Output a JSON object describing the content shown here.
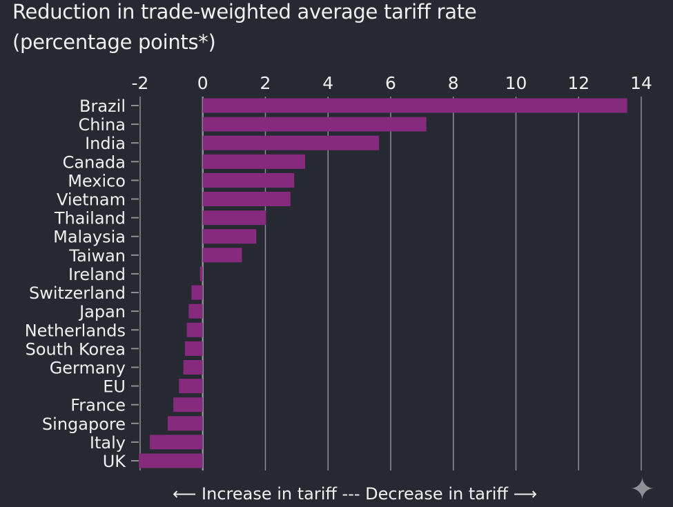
{
  "chart_data": {
    "type": "bar",
    "orientation": "horizontal",
    "title": "Reduction in trade-weighted average tariff rate",
    "subtitle": "(percentage points*)",
    "categories": [
      "Brazil",
      "China",
      "India",
      "Canada",
      "Mexico",
      "Vietnam",
      "Thailand",
      "Malaysia",
      "Taiwan",
      "Ireland",
      "Switzerland",
      "Japan",
      "Netherlands",
      "South Korea",
      "Germany",
      "EU",
      "France",
      "Singapore",
      "Italy",
      "UK"
    ],
    "values": [
      13.55,
      7.14,
      5.63,
      3.27,
      2.92,
      2.8,
      2.02,
      1.71,
      1.25,
      -0.09,
      -0.36,
      -0.45,
      -0.51,
      -0.57,
      -0.62,
      -0.76,
      -0.94,
      -1.12,
      -1.69,
      -2.04
    ],
    "xlim": [
      -2,
      14
    ],
    "xticks": [
      "-2",
      "0",
      "2",
      "4",
      "6",
      "8",
      "10",
      "12",
      "14"
    ],
    "xtick_values": [
      -2,
      0,
      2,
      4,
      6,
      8,
      10,
      12,
      14
    ],
    "xaxis_position": "top",
    "grid": true,
    "footer": "⟵ Increase in tariff --- Decrease in tariff ⟶",
    "colors": {
      "bar": "#862a7e",
      "background": "#262931",
      "grid": "#8e9097"
    }
  },
  "icons": {
    "corner": "sparkle-icon"
  }
}
